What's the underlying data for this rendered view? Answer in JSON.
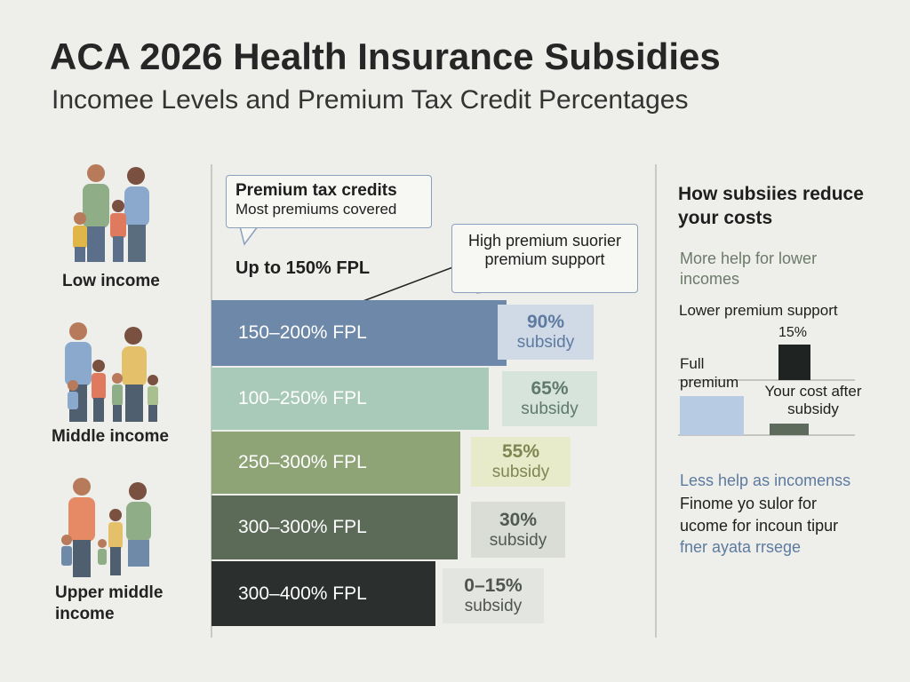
{
  "header": {
    "title": "ACA 2026 Health Insurance Subsidies",
    "subtitle": "Incomee Levels and Premium Tax Credit Percentages"
  },
  "groups": [
    {
      "label": "Low income"
    },
    {
      "label": "Middle income"
    },
    {
      "label": "Upper middle income"
    }
  ],
  "callouts": [
    {
      "title": "Premium tax credits",
      "text": "Most premiums covered"
    },
    {
      "lines": [
        "High premium suorier",
        "premium support"
      ]
    }
  ],
  "top_label": "Up to 150% FPL",
  "tiers": [
    {
      "label": "150–200% FPL",
      "subsidy": "90%",
      "note": "subsidy"
    },
    {
      "label": "100–250% FPL",
      "subsidy": "65%",
      "note": "subsidy"
    },
    {
      "label": "250–300% FPL",
      "subsidy": "55%",
      "note": "subsidy"
    },
    {
      "label": "300–300% FPL",
      "subsidy": "30%",
      "note": "subsidy"
    },
    {
      "label": "300–400% FPL",
      "subsidy": "0–15%",
      "note": "subsidy"
    }
  ],
  "side": {
    "title": "How subsiies reduce your costs",
    "more_help": "More help for lower incomes",
    "lower_support": "Lower premium support",
    "full_premium": "Full premium",
    "percent": "15%",
    "your_cost": "Your cost after subsidy",
    "less_help": "Less help as incomenss",
    "lines": [
      "Finome yo sulor for",
      "ucome for incoun tipur",
      "fner ayata rrsege"
    ]
  }
}
